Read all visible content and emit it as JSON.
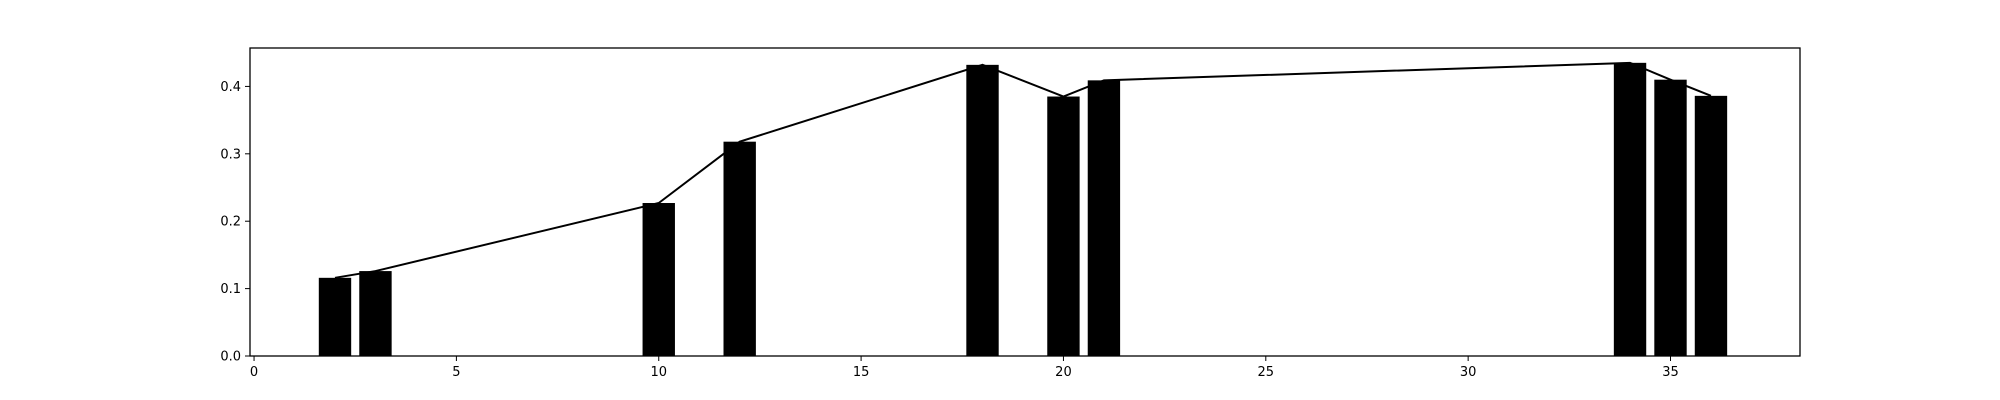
{
  "chart_data": {
    "type": "bar",
    "x": [
      2,
      3,
      10,
      12,
      18,
      20,
      21,
      34,
      35,
      36
    ],
    "values": [
      0.116,
      0.126,
      0.227,
      0.318,
      0.432,
      0.385,
      0.409,
      0.435,
      0.41,
      0.386
    ],
    "title": "",
    "xlabel": "",
    "ylabel": "",
    "xlim": [
      -0.1,
      38.2
    ],
    "ylim": [
      0.0,
      0.457
    ],
    "xticks": [
      0,
      5,
      10,
      15,
      20,
      25,
      30,
      35
    ],
    "yticks": [
      0.0,
      0.1,
      0.2,
      0.3,
      0.4
    ],
    "bar_width": 0.8,
    "overlay_line": true,
    "grid": false,
    "bar_color": "#000000",
    "line_color": "#000000"
  }
}
